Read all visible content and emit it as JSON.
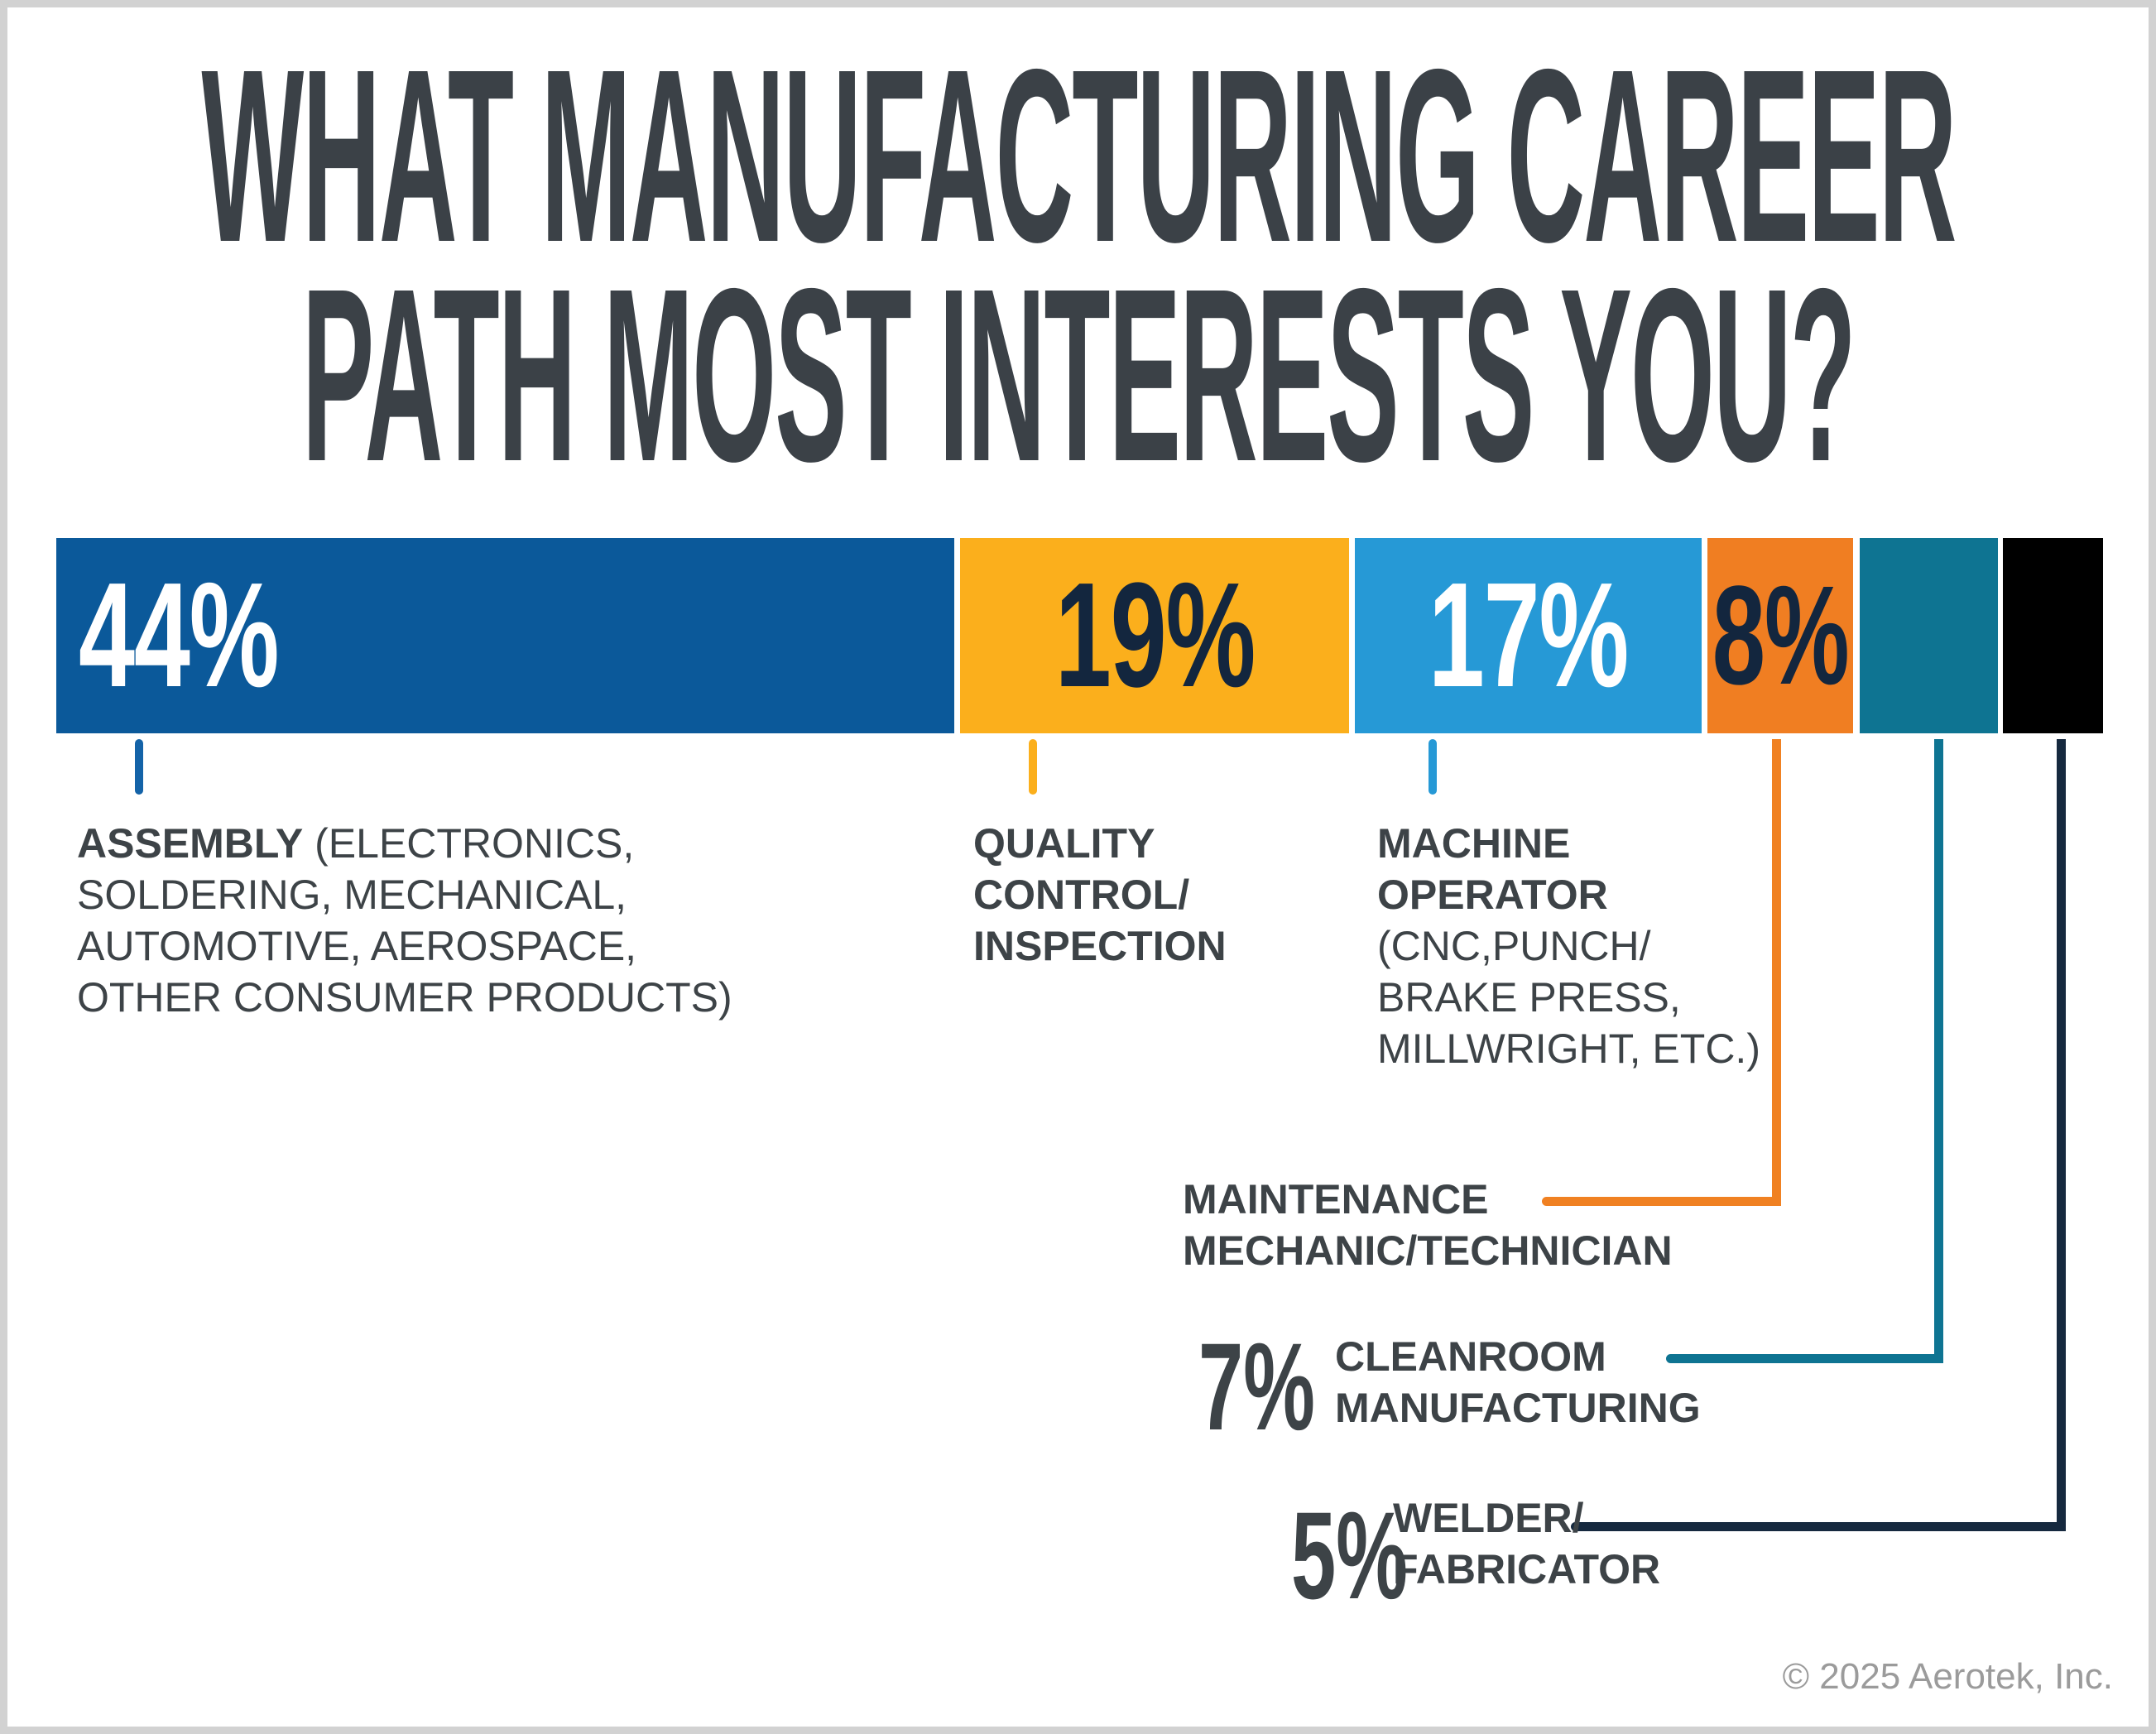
{
  "title": {
    "line1": "WHAT MANUFACTURING CAREER",
    "line2": "PATH MOST INTERESTS YOU?"
  },
  "chart_data": {
    "type": "bar",
    "orientation": "horizontal_stacked",
    "unit": "percent",
    "title": "What manufacturing career path most interests you?",
    "categories": [
      "Assembly (electronics, soldering, mechanical, automotive, aerospace, other consumer products)",
      "Quality control/inspection",
      "Machine operator (CNC, punch/brake press, millwright, etc.)",
      "Maintenance mechanic/technician",
      "Cleanroom manufacturing",
      "Welder/fabricator"
    ],
    "values": [
      44,
      19,
      17,
      8,
      7,
      5
    ],
    "segments": [
      {
        "category": "Assembly",
        "pct": "44%",
        "color": "#0B599A",
        "text_color": "#FFFFFF"
      },
      {
        "category": "Quality control/inspection",
        "pct": "19%",
        "color": "#FBAF1C",
        "text_color": "#13263E"
      },
      {
        "category": "Machine operator",
        "pct": "17%",
        "color": "#2699D6",
        "text_color": "#FFFFFF"
      },
      {
        "category": "Maintenance mechanic/technician",
        "pct": "8%",
        "color": "#F07E22",
        "text_color": "#13263E"
      },
      {
        "category": "Cleanroom manufacturing",
        "pct": "7%",
        "color": "#0E7492",
        "text_color": ""
      },
      {
        "category": "Welder/fabricator",
        "pct": "5%",
        "color": "#000000",
        "text_color": ""
      }
    ],
    "legend_position": "below-with-callout-lines",
    "grid": false
  },
  "labels": {
    "assembly": {
      "line1_bold": "ASSEMBLY",
      "line1_rest": " (ELECTRONICS,",
      "line2": "SOLDERING, MECHANICAL,",
      "line3": "AUTOMOTIVE, AEROSPACE,",
      "line4": "OTHER CONSUMER PRODUCTS)"
    },
    "quality": {
      "line1": "QUALITY",
      "line2": "CONTROL/",
      "line3": "INSPECTION"
    },
    "machine": {
      "line1": "MACHINE",
      "line2": "OPERATOR",
      "line3": "(CNC,PUNCH/",
      "line4": "BRAKE PRESS,",
      "line5": "MILLWRIGHT, ETC.)"
    },
    "maintenance": {
      "line1": "MAINTENANCE",
      "line2": "MECHANIC/TECHNICIAN"
    },
    "cleanroom": {
      "pct": "7%",
      "line1": "CLEANROOM",
      "line2": "MANUFACTURING"
    },
    "welder": {
      "pct": "5%",
      "line1": "WELDER/",
      "line2": "FABRICATOR"
    }
  },
  "footer": {
    "copyright": "© 2025 Aerotek, Inc."
  },
  "palette": {
    "title_text": "#3B4147",
    "label_text": "#3D4347",
    "assembly_blue": "#0B599A",
    "quality_yellow": "#FBAF1C",
    "machine_lightblue": "#2699D6",
    "maintenance_orange": "#F07E22",
    "cleanroom_teal": "#0E7492",
    "welder_black": "#000000",
    "connector_navy": "#16293F",
    "copyright_gray": "#9B9B9B",
    "frame_gray": "#D2D2D2"
  }
}
